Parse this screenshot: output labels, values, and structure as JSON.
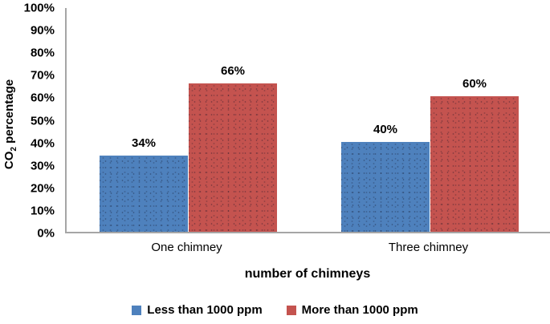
{
  "chart_data": {
    "type": "bar",
    "title": "",
    "xlabel": "number of chimneys",
    "ylabel": "CO2 percentage",
    "ylabel_parts": {
      "main": "CO",
      "sub": "2",
      "rest": " percentage"
    },
    "categories": [
      "One chimney",
      "Three chimney"
    ],
    "series": [
      {
        "name": "Less than 1000 ppm",
        "color": "#4E81BD",
        "values": [
          34,
          40
        ],
        "labels": [
          "34%",
          "40%"
        ]
      },
      {
        "name": "More than 1000 ppm",
        "color": "#C4534F",
        "values": [
          66,
          60
        ],
        "labels": [
          "66%",
          "60%"
        ]
      }
    ],
    "yticks": [
      "100%",
      "90%",
      "80%",
      "70%",
      "60%",
      "50%",
      "40%",
      "30%",
      "20%",
      "10%",
      "0%"
    ],
    "ylim": [
      0,
      100
    ],
    "grid": false,
    "legend_position": "bottom",
    "axis_color": "#A6A6A6"
  }
}
